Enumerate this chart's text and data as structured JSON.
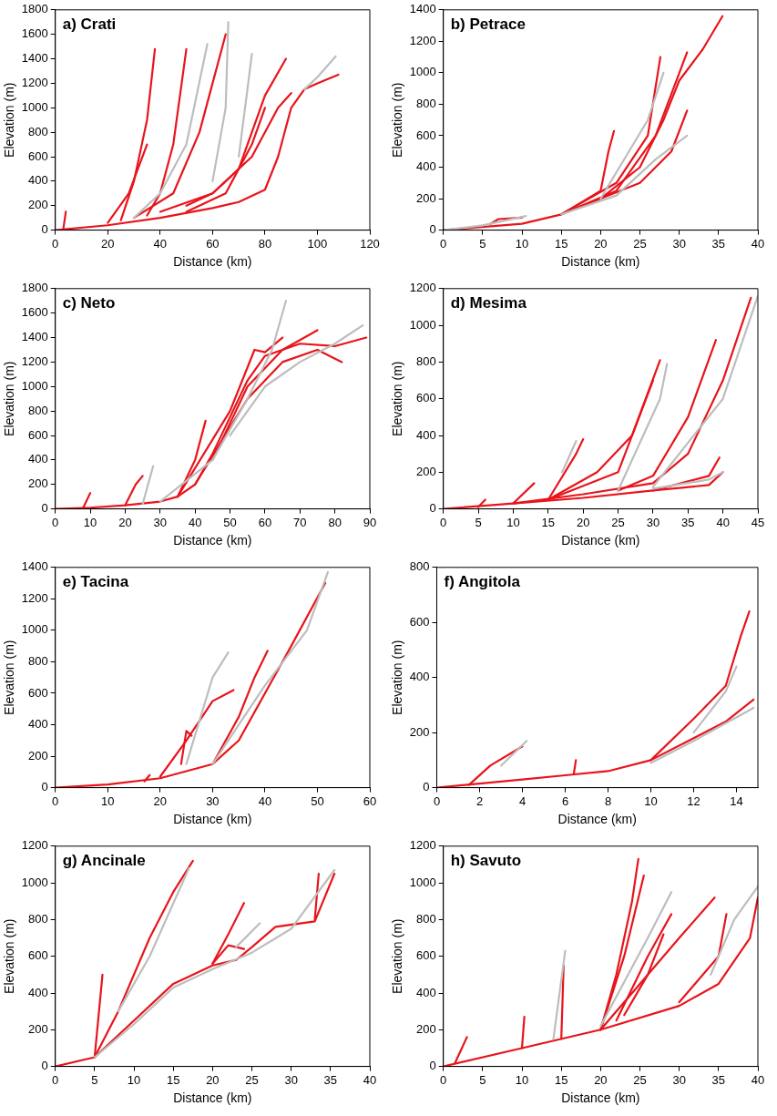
{
  "chart_data": [
    {
      "type": "line",
      "title": "a) Crati",
      "xlabel": "Distance (km)",
      "ylabel": "Elevation (m)",
      "xlim": [
        0,
        120
      ],
      "xticks": [
        0,
        20,
        40,
        60,
        80,
        100,
        120
      ],
      "ylim": [
        0,
        1800
      ],
      "yticks": [
        0,
        200,
        400,
        600,
        800,
        1000,
        1200,
        1400,
        1600,
        1800
      ],
      "grid": false,
      "legend": false,
      "marker": "none",
      "line_style": "solid",
      "series": [
        {
          "color": "#bdbdbd",
          "x": [
            30,
            40,
            50,
            58
          ],
          "values": [
            100,
            300,
            700,
            1520
          ]
        },
        {
          "color": "#bdbdbd",
          "x": [
            60,
            65,
            66
          ],
          "values": [
            400,
            1000,
            1700
          ]
        },
        {
          "color": "#bdbdbd",
          "x": [
            70,
            73,
            75
          ],
          "values": [
            600,
            1100,
            1440
          ]
        },
        {
          "color": "#bdbdbd",
          "x": [
            95,
            100,
            107
          ],
          "values": [
            1150,
            1250,
            1420
          ]
        },
        {
          "color": "#e8141b",
          "x": [
            0,
            20,
            40,
            60,
            70,
            80,
            85,
            90,
            95,
            100,
            108
          ],
          "values": [
            0,
            40,
            100,
            180,
            230,
            330,
            600,
            1000,
            1150,
            1200,
            1270
          ]
        },
        {
          "color": "#e8141b",
          "x": [
            25,
            30,
            35,
            38
          ],
          "values": [
            80,
            400,
            900,
            1480
          ]
        },
        {
          "color": "#e8141b",
          "x": [
            35,
            40,
            45,
            50
          ],
          "values": [
            120,
            300,
            700,
            1480
          ]
        },
        {
          "color": "#e8141b",
          "x": [
            30,
            45,
            55,
            60,
            65
          ],
          "values": [
            100,
            300,
            800,
            1200,
            1600
          ]
        },
        {
          "color": "#e8141b",
          "x": [
            40,
            60,
            75,
            85,
            90
          ],
          "values": [
            150,
            300,
            600,
            1000,
            1120
          ]
        },
        {
          "color": "#e8141b",
          "x": [
            50,
            65,
            75,
            80
          ],
          "values": [
            150,
            300,
            700,
            1000
          ]
        },
        {
          "color": "#e8141b",
          "x": [
            50,
            60,
            70,
            75,
            80,
            88
          ],
          "values": [
            200,
            300,
            500,
            800,
            1100,
            1400
          ]
        },
        {
          "color": "#e8141b",
          "x": [
            3,
            4
          ],
          "values": [
            0,
            150
          ]
        },
        {
          "color": "#e8141b",
          "x": [
            20,
            28,
            35
          ],
          "values": [
            60,
            300,
            700
          ]
        }
      ]
    },
    {
      "type": "line",
      "title": "b) Petrace",
      "xlabel": "Distance (km)",
      "ylabel": "Elevation (m)",
      "xlim": [
        0,
        40
      ],
      "xticks": [
        0,
        5,
        10,
        15,
        20,
        25,
        30,
        35,
        40
      ],
      "ylim": [
        0,
        1400
      ],
      "yticks": [
        0,
        200,
        400,
        600,
        800,
        1000,
        1200,
        1400
      ],
      "grid": false,
      "legend": false,
      "marker": "none",
      "line_style": "solid",
      "series": [
        {
          "color": "#bdbdbd",
          "x": [
            0,
            5,
            10.5
          ],
          "values": [
            0,
            30,
            90
          ]
        },
        {
          "color": "#bdbdbd",
          "x": [
            15,
            22,
            27,
            31
          ],
          "values": [
            100,
            220,
            450,
            600
          ]
        },
        {
          "color": "#bdbdbd",
          "x": [
            20,
            26,
            28
          ],
          "values": [
            200,
            700,
            1000
          ]
        },
        {
          "color": "#e8141b",
          "x": [
            0,
            10,
            15,
            20,
            25,
            28,
            30,
            33,
            35.5
          ],
          "values": [
            0,
            40,
            100,
            200,
            400,
            700,
            950,
            1150,
            1360
          ]
        },
        {
          "color": "#e8141b",
          "x": [
            6,
            7,
            10
          ],
          "values": [
            40,
            70,
            80
          ]
        },
        {
          "color": "#e8141b",
          "x": [
            15,
            20,
            21,
            21.7
          ],
          "values": [
            100,
            250,
            500,
            630
          ]
        },
        {
          "color": "#e8141b",
          "x": [
            15,
            22,
            26,
            27.6
          ],
          "values": [
            100,
            300,
            600,
            1100
          ]
        },
        {
          "color": "#e8141b",
          "x": [
            15,
            25,
            29,
            31
          ],
          "values": [
            100,
            300,
            500,
            760
          ]
        },
        {
          "color": "#e8141b",
          "x": [
            15,
            22,
            27,
            31
          ],
          "values": [
            100,
            250,
            600,
            1130
          ]
        }
      ]
    },
    {
      "type": "line",
      "title": "c) Neto",
      "xlabel": "Distance (km)",
      "ylabel": "Elevation (m)",
      "xlim": [
        0,
        90
      ],
      "xticks": [
        0,
        10,
        20,
        30,
        40,
        50,
        60,
        70,
        80,
        90
      ],
      "ylim": [
        0,
        1800
      ],
      "yticks": [
        0,
        200,
        400,
        600,
        800,
        1000,
        1200,
        1400,
        1600,
        1800
      ],
      "grid": false,
      "legend": false,
      "marker": "none",
      "line_style": "solid",
      "series": [
        {
          "color": "#bdbdbd",
          "x": [
            30,
            45,
            55,
            62,
            66
          ],
          "values": [
            60,
            400,
            900,
            1300,
            1700
          ]
        },
        {
          "color": "#bdbdbd",
          "x": [
            50,
            60,
            70,
            80,
            88
          ],
          "values": [
            600,
            1000,
            1200,
            1350,
            1500
          ]
        },
        {
          "color": "#bdbdbd",
          "x": [
            25,
            28
          ],
          "values": [
            40,
            350
          ]
        },
        {
          "color": "#e8141b",
          "x": [
            0,
            10,
            20,
            30,
            35,
            40,
            45,
            50,
            55,
            60,
            70,
            80,
            89
          ],
          "values": [
            0,
            10,
            30,
            60,
            100,
            200,
            450,
            750,
            1050,
            1250,
            1350,
            1330,
            1400
          ]
        },
        {
          "color": "#e8141b",
          "x": [
            35,
            50,
            57,
            60,
            65
          ],
          "values": [
            100,
            800,
            1300,
            1280,
            1400
          ]
        },
        {
          "color": "#e8141b",
          "x": [
            40,
            55,
            65,
            75,
            82
          ],
          "values": [
            200,
            900,
            1200,
            1300,
            1200
          ]
        },
        {
          "color": "#e8141b",
          "x": [
            35,
            40,
            43
          ],
          "values": [
            100,
            400,
            720
          ]
        },
        {
          "color": "#e8141b",
          "x": [
            8,
            10
          ],
          "values": [
            10,
            130
          ]
        },
        {
          "color": "#e8141b",
          "x": [
            20,
            23,
            25
          ],
          "values": [
            30,
            200,
            270
          ]
        },
        {
          "color": "#e8141b",
          "x": [
            45,
            55,
            65,
            75
          ],
          "values": [
            400,
            1000,
            1300,
            1460
          ]
        }
      ]
    },
    {
      "type": "line",
      "title": "d) Mesima",
      "xlabel": "Distance (km)",
      "ylabel": "Elevation (m)",
      "xlim": [
        0,
        45
      ],
      "xticks": [
        0,
        5,
        10,
        15,
        20,
        25,
        30,
        35,
        40,
        45
      ],
      "ylim": [
        0,
        1200
      ],
      "yticks": [
        0,
        200,
        400,
        600,
        800,
        1000,
        1200
      ],
      "grid": false,
      "legend": false,
      "marker": "none",
      "line_style": "solid",
      "series": [
        {
          "color": "#bdbdbd",
          "x": [
            25,
            31,
            32
          ],
          "values": [
            100,
            600,
            790
          ]
        },
        {
          "color": "#bdbdbd",
          "x": [
            30,
            40,
            45
          ],
          "values": [
            120,
            600,
            1160
          ]
        },
        {
          "color": "#bdbdbd",
          "x": [
            30,
            38,
            40
          ],
          "values": [
            110,
            160,
            200
          ]
        },
        {
          "color": "#bdbdbd",
          "x": [
            17,
            19
          ],
          "values": [
            200,
            370
          ]
        },
        {
          "color": "#e8141b",
          "x": [
            0,
            10,
            20,
            30,
            38,
            40
          ],
          "values": [
            0,
            30,
            60,
            100,
            130,
            200
          ]
        },
        {
          "color": "#e8141b",
          "x": [
            10,
            20,
            30,
            35,
            40,
            44
          ],
          "values": [
            30,
            80,
            140,
            300,
            700,
            1150
          ]
        },
        {
          "color": "#e8141b",
          "x": [
            25,
            30,
            35,
            39
          ],
          "values": [
            100,
            180,
            500,
            920
          ]
        },
        {
          "color": "#e8141b",
          "x": [
            15,
            22,
            27,
            31
          ],
          "values": [
            50,
            200,
            400,
            810
          ]
        },
        {
          "color": "#e8141b",
          "x": [
            15,
            25,
            30
          ],
          "values": [
            50,
            200,
            700
          ]
        },
        {
          "color": "#e8141b",
          "x": [
            10,
            13
          ],
          "values": [
            30,
            140
          ]
        },
        {
          "color": "#e8141b",
          "x": [
            15,
            19,
            20
          ],
          "values": [
            50,
            300,
            380
          ]
        },
        {
          "color": "#e8141b",
          "x": [
            30,
            35,
            38,
            39.5
          ],
          "values": [
            100,
            150,
            180,
            280
          ]
        },
        {
          "color": "#e8141b",
          "x": [
            5,
            6
          ],
          "values": [
            10,
            50
          ]
        }
      ]
    },
    {
      "type": "line",
      "title": "e) Tacina",
      "xlabel": "Distance (km)",
      "ylabel": "Elevation (m)",
      "xlim": [
        0,
        60
      ],
      "xticks": [
        0,
        10,
        20,
        30,
        40,
        50,
        60
      ],
      "ylim": [
        0,
        1400
      ],
      "yticks": [
        0,
        200,
        400,
        600,
        800,
        1000,
        1200,
        1400
      ],
      "grid": false,
      "legend": false,
      "marker": "none",
      "line_style": "solid",
      "series": [
        {
          "color": "#bdbdbd",
          "x": [
            25,
            30,
            33
          ],
          "values": [
            150,
            700,
            860
          ]
        },
        {
          "color": "#bdbdbd",
          "x": [
            30,
            40,
            48,
            52
          ],
          "values": [
            150,
            650,
            1000,
            1370
          ]
        },
        {
          "color": "#e8141b",
          "x": [
            0,
            10,
            20,
            30,
            35,
            40,
            45,
            51.5
          ],
          "values": [
            0,
            20,
            60,
            150,
            300,
            600,
            900,
            1300
          ]
        },
        {
          "color": "#e8141b",
          "x": [
            20,
            25,
            30,
            34
          ],
          "values": [
            70,
            300,
            550,
            620
          ]
        },
        {
          "color": "#e8141b",
          "x": [
            24,
            25,
            26
          ],
          "values": [
            150,
            360,
            330
          ]
        },
        {
          "color": "#e8141b",
          "x": [
            30,
            35,
            38,
            40.5
          ],
          "values": [
            150,
            450,
            700,
            870
          ]
        },
        {
          "color": "#e8141b",
          "x": [
            17,
            18
          ],
          "values": [
            40,
            80
          ]
        }
      ]
    },
    {
      "type": "line",
      "title": "f) Angitola",
      "xlabel": "Distance (km)",
      "ylabel": "Elevation (m)",
      "xlim": [
        0,
        15
      ],
      "xticks": [
        0,
        2,
        4,
        6,
        8,
        10,
        12,
        14
      ],
      "ylim": [
        0,
        800
      ],
      "yticks": [
        0,
        200,
        400,
        600,
        800
      ],
      "grid": false,
      "legend": false,
      "marker": "none",
      "line_style": "solid",
      "series": [
        {
          "color": "#bdbdbd",
          "x": [
            10,
            12,
            14.8
          ],
          "values": [
            90,
            170,
            290
          ]
        },
        {
          "color": "#bdbdbd",
          "x": [
            3,
            4.2
          ],
          "values": [
            80,
            170
          ]
        },
        {
          "color": "#bdbdbd",
          "x": [
            12,
            13.5,
            14
          ],
          "values": [
            200,
            350,
            440
          ]
        },
        {
          "color": "#e8141b",
          "x": [
            0,
            2,
            4,
            6,
            8,
            10,
            12,
            13.5,
            14.8
          ],
          "values": [
            0,
            15,
            30,
            45,
            60,
            100,
            180,
            240,
            320
          ]
        },
        {
          "color": "#e8141b",
          "x": [
            10,
            12,
            13.5,
            14.2,
            14.6
          ],
          "values": [
            100,
            250,
            370,
            550,
            640
          ]
        },
        {
          "color": "#e8141b",
          "x": [
            1.5,
            2.5,
            4
          ],
          "values": [
            10,
            80,
            150
          ]
        },
        {
          "color": "#e8141b",
          "x": [
            6.4,
            6.5
          ],
          "values": [
            50,
            100
          ]
        }
      ]
    },
    {
      "type": "line",
      "title": "g) Ancinale",
      "xlabel": "Distance (km)",
      "ylabel": "Elevation (m)",
      "xlim": [
        0,
        40
      ],
      "xticks": [
        0,
        5,
        10,
        15,
        20,
        25,
        30,
        35,
        40
      ],
      "ylim": [
        0,
        1200
      ],
      "yticks": [
        0,
        200,
        400,
        600,
        800,
        1000,
        1200
      ],
      "grid": false,
      "legend": false,
      "marker": "none",
      "line_style": "solid",
      "series": [
        {
          "color": "#bdbdbd",
          "x": [
            5,
            10,
            15,
            20,
            25,
            30,
            35.5
          ],
          "values": [
            50,
            230,
            430,
            530,
            620,
            750,
            1070
          ]
        },
        {
          "color": "#bdbdbd",
          "x": [
            8,
            12,
            17
          ],
          "values": [
            300,
            600,
            1080
          ]
        },
        {
          "color": "#bdbdbd",
          "x": [
            23,
            26
          ],
          "values": [
            650,
            780
          ]
        },
        {
          "color": "#e8141b",
          "x": [
            0,
            5,
            10,
            15,
            20,
            23,
            25,
            28,
            33,
            35.5
          ],
          "values": [
            0,
            50,
            250,
            450,
            550,
            580,
            650,
            760,
            790,
            1050
          ]
        },
        {
          "color": "#e8141b",
          "x": [
            5,
            8,
            12,
            15,
            17.5
          ],
          "values": [
            50,
            300,
            700,
            950,
            1120
          ]
        },
        {
          "color": "#e8141b",
          "x": [
            5,
            6
          ],
          "values": [
            50,
            500
          ]
        },
        {
          "color": "#e8141b",
          "x": [
            20,
            22,
            24
          ],
          "values": [
            560,
            720,
            890
          ]
        },
        {
          "color": "#e8141b",
          "x": [
            20,
            22,
            24
          ],
          "values": [
            560,
            660,
            640
          ]
        },
        {
          "color": "#e8141b",
          "x": [
            33,
            33.5
          ],
          "values": [
            800,
            1050
          ]
        }
      ]
    },
    {
      "type": "line",
      "title": "h) Savuto",
      "xlabel": "Distance (km)",
      "ylabel": "Elevation (m)",
      "xlim": [
        0,
        40
      ],
      "xticks": [
        0,
        5,
        10,
        15,
        20,
        25,
        30,
        35,
        40
      ],
      "ylim": [
        0,
        1200
      ],
      "yticks": [
        0,
        200,
        400,
        600,
        800,
        1000,
        1200
      ],
      "grid": false,
      "legend": false,
      "marker": "none",
      "line_style": "solid",
      "series": [
        {
          "color": "#bdbdbd",
          "x": [
            20,
            26,
            29
          ],
          "values": [
            220,
            700,
            950
          ]
        },
        {
          "color": "#bdbdbd",
          "x": [
            34,
            37,
            40
          ],
          "values": [
            500,
            800,
            980
          ]
        },
        {
          "color": "#bdbdbd",
          "x": [
            14,
            15.5
          ],
          "values": [
            150,
            630
          ]
        },
        {
          "color": "#e8141b",
          "x": [
            0,
            10,
            20,
            30,
            35,
            39,
            40
          ],
          "values": [
            0,
            100,
            200,
            330,
            450,
            700,
            920
          ]
        },
        {
          "color": "#e8141b",
          "x": [
            20,
            22,
            24,
            24.8
          ],
          "values": [
            200,
            500,
            900,
            1130
          ]
        },
        {
          "color": "#e8141b",
          "x": [
            20,
            25,
            30,
            34.5
          ],
          "values": [
            200,
            450,
            700,
            920
          ]
        },
        {
          "color": "#e8141b",
          "x": [
            20,
            23,
            25.5
          ],
          "values": [
            200,
            600,
            1040
          ]
        },
        {
          "color": "#e8141b",
          "x": [
            22,
            26,
            29
          ],
          "values": [
            250,
            600,
            830
          ]
        },
        {
          "color": "#e8141b",
          "x": [
            15,
            15.3
          ],
          "values": [
            150,
            550
          ]
        },
        {
          "color": "#e8141b",
          "x": [
            10,
            10.3
          ],
          "values": [
            100,
            270
          ]
        },
        {
          "color": "#e8141b",
          "x": [
            1.5,
            3
          ],
          "values": [
            20,
            160
          ]
        },
        {
          "color": "#e8141b",
          "x": [
            30,
            32,
            35,
            36
          ],
          "values": [
            350,
            450,
            600,
            830
          ]
        },
        {
          "color": "#e8141b",
          "x": [
            23,
            26,
            28
          ],
          "values": [
            280,
            500,
            720
          ]
        }
      ]
    }
  ]
}
